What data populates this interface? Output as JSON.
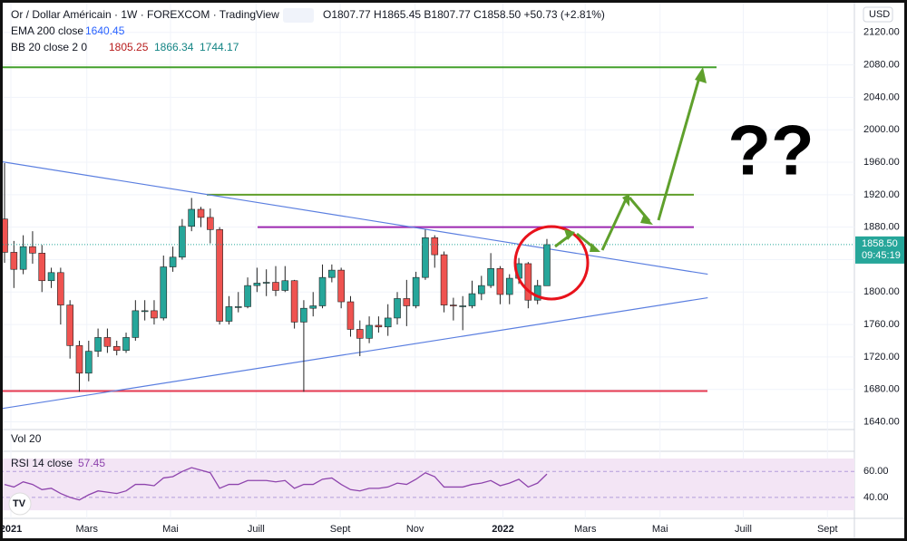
{
  "header": {
    "title": "Or / Dollar Américain · 1W · FOREXCOM · TradingView",
    "ohlc": "O1807.77 H1865.45 B1807.77 C1858.50 +50.73 (+2.81%)",
    "ema": "EMA 200 close",
    "ema_value": "1640.45",
    "bb": "BB 20 close 2 0",
    "bb_basis": "1805.25",
    "bb_upper": "1866.34",
    "bb_lower": "1744.17",
    "currency": "USD",
    "vol": "Vol 20",
    "rsi": "RSI 14 close",
    "rsi_value": "57.45",
    "annotation": "??"
  },
  "chart_data": {
    "type": "candlestick",
    "open": [
      1890,
      1849,
      1828,
      1856,
      1848,
      1814,
      1824,
      1784,
      1734,
      1700,
      1727,
      1744,
      1733,
      1728,
      1744,
      1777,
      1777,
      1768,
      1831,
      1843,
      1881,
      1902,
      1892,
      1877,
      1764,
      1782,
      1782,
      1808,
      1811,
      1812,
      1802,
      1814,
      1763,
      1780,
      1783,
      1818,
      1827,
      1788,
      1754,
      1743,
      1759,
      1757,
      1768,
      1792,
      1783,
      1818,
      1867,
      1846,
      1784,
      1783,
      1783,
      1798,
      1808,
      1829,
      1797,
      1817,
      1835,
      1790,
      1807.77
    ],
    "high": [
      1959,
      1863,
      1870,
      1875,
      1858,
      1830,
      1830,
      1790,
      1740,
      1740,
      1755,
      1755,
      1740,
      1750,
      1790,
      1790,
      1790,
      1845,
      1856,
      1890,
      1916,
      1905,
      1903,
      1880,
      1795,
      1800,
      1818,
      1830,
      1828,
      1832,
      1832,
      1815,
      1790,
      1800,
      1834,
      1834,
      1830,
      1795,
      1765,
      1770,
      1770,
      1785,
      1800,
      1815,
      1825,
      1877,
      1870,
      1850,
      1793,
      1795,
      1814,
      1820,
      1848,
      1832,
      1822,
      1842,
      1837,
      1815,
      1865.45
    ],
    "low": [
      1836,
      1805,
      1822,
      1835,
      1800,
      1805,
      1760,
      1718,
      1677,
      1690,
      1720,
      1725,
      1722,
      1725,
      1740,
      1765,
      1760,
      1765,
      1825,
      1840,
      1875,
      1880,
      1860,
      1760,
      1760,
      1775,
      1780,
      1800,
      1795,
      1795,
      1800,
      1755,
      1677,
      1770,
      1780,
      1812,
      1780,
      1745,
      1721,
      1737,
      1750,
      1746,
      1760,
      1758,
      1780,
      1815,
      1830,
      1775,
      1765,
      1753,
      1780,
      1790,
      1805,
      1785,
      1785,
      1810,
      1780,
      1785,
      1807.77
    ],
    "close": [
      1849,
      1828,
      1856,
      1848,
      1814,
      1824,
      1784,
      1734,
      1700,
      1727,
      1744,
      1733,
      1728,
      1744,
      1777,
      1777,
      1768,
      1831,
      1843,
      1881,
      1902,
      1892,
      1877,
      1764,
      1782,
      1782,
      1808,
      1811,
      1812,
      1802,
      1814,
      1763,
      1780,
      1783,
      1818,
      1827,
      1788,
      1754,
      1743,
      1759,
      1757,
      1768,
      1792,
      1783,
      1818,
      1867,
      1846,
      1784,
      1783,
      1783,
      1798,
      1808,
      1829,
      1797,
      1817,
      1835,
      1790,
      1808,
      1858.5
    ],
    "up_color": "#26a69a",
    "down_color": "#ef5350",
    "ylim": [
      1635,
      2160
    ],
    "yticks": [
      {
        "value": 1640,
        "label": "1640.00"
      },
      {
        "value": 1680,
        "label": "1680.00"
      },
      {
        "value": 1720,
        "label": "1720.00"
      },
      {
        "value": 1760,
        "label": "1760.00"
      },
      {
        "value": 1800,
        "label": "1800.00"
      },
      {
        "value": 1840,
        "label": "1840.00"
      },
      {
        "value": 1880,
        "label": "1880.00"
      },
      {
        "value": 1920,
        "label": "1920.00"
      },
      {
        "value": 1960,
        "label": "1960.00"
      },
      {
        "value": 2000,
        "label": "2000.00"
      },
      {
        "value": 2040,
        "label": "2040.00"
      },
      {
        "value": 2080,
        "label": "2080.00"
      },
      {
        "value": 2120,
        "label": "2120.00"
      }
    ],
    "xticks": [
      {
        "value": 0.68,
        "label": "2021"
      },
      {
        "value": 8.8,
        "label": "Mars"
      },
      {
        "value": 17.75,
        "label": "Mai"
      },
      {
        "value": 26.9,
        "label": "Juill"
      },
      {
        "value": 35.9,
        "label": "Sept"
      },
      {
        "value": 43.9,
        "label": "Nov"
      },
      {
        "value": 53.3,
        "label": "2022"
      },
      {
        "value": 62.1,
        "label": "Mars"
      },
      {
        "value": 70.1,
        "label": "Mai"
      },
      {
        "value": 79,
        "label": "Juill"
      },
      {
        "value": 88,
        "label": "Sept"
      }
    ],
    "last_price": 1858.5,
    "last_price_label": "1858.50",
    "countdown": "09:45:19",
    "levels": [
      {
        "value": 2077,
        "color": "#43a02c"
      },
      {
        "value": 1920,
        "color": "#5f9e2a"
      },
      {
        "value": 1880,
        "color": "#9c27b0"
      },
      {
        "value": 1678,
        "color": "#e53950"
      }
    ],
    "trendlines": [
      {
        "from": [
          -0.5,
          1961
        ],
        "to": [
          75.2,
          1822
        ],
        "color": "#5b7fe0"
      },
      {
        "from": [
          -0.5,
          1656
        ],
        "to": [
          75.2,
          1793
        ],
        "color": "#5b7fe0"
      }
    ],
    "rsi": {
      "values": [
        50,
        48,
        52,
        50,
        46,
        47,
        43,
        40,
        38,
        42,
        45,
        44,
        43,
        45,
        50,
        50,
        49,
        55,
        56,
        60,
        63,
        61,
        59,
        47,
        50,
        50,
        53,
        53,
        53,
        52,
        53,
        47,
        50,
        50,
        54,
        55,
        50,
        46,
        45,
        47,
        47,
        48,
        51,
        50,
        54,
        59,
        56,
        48,
        48,
        48,
        50,
        51,
        53,
        49,
        51,
        54,
        48,
        51,
        58
      ],
      "color": "#8e44ad",
      "ylim": [
        28,
        70
      ],
      "band": [
        30,
        70
      ],
      "yticks": [
        {
          "value": 40,
          "label": "40.00"
        },
        {
          "value": 60,
          "label": "60.00"
        }
      ]
    }
  }
}
